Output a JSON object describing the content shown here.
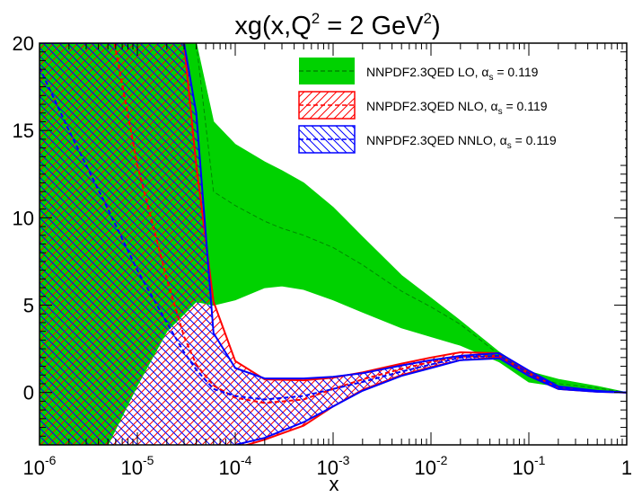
{
  "chart_data": {
    "type": "area",
    "title_parts": [
      "xg(x,Q",
      "2",
      " = 2 GeV",
      "2",
      ")"
    ],
    "xlabel": "x",
    "ylabel": "",
    "xscale": "log",
    "xlim": [
      1e-06,
      1
    ],
    "ylim": [
      -3,
      20
    ],
    "grid": false,
    "legend_position": "top-right",
    "x_major_ticks": [
      1e-06,
      1e-05,
      0.0001,
      0.001,
      0.01,
      0.1,
      1
    ],
    "x_tick_labels": [
      {
        "base": "10",
        "exp": "-6"
      },
      {
        "base": "10",
        "exp": "-5"
      },
      {
        "base": "10",
        "exp": "-4"
      },
      {
        "base": "10",
        "exp": "-3"
      },
      {
        "base": "10",
        "exp": "-2"
      },
      {
        "base": "10",
        "exp": "-1"
      },
      {
        "base": "1",
        "exp": ""
      }
    ],
    "y_major_ticks": [
      0,
      5,
      10,
      15,
      20
    ],
    "y_tick_labels": [
      "0",
      "5",
      "10",
      "15",
      "20"
    ],
    "series": [
      {
        "name": "NNPDF2.3QED LO, α",
        "alpha_sub": "s",
        "alpha_value": " = 0.119",
        "color": "#00d200",
        "fill": "solid",
        "x": [
          1e-06,
          2e-06,
          5e-06,
          1e-05,
          2e-05,
          4e-05,
          6e-05,
          0.0001,
          0.0002,
          0.0003,
          0.0005,
          0.001,
          0.002,
          0.005,
          0.01,
          0.02,
          0.05,
          0.1,
          0.2,
          0.5,
          1
        ],
        "upper": [
          20,
          20,
          20,
          20,
          20,
          20,
          15.5,
          14.2,
          13.2,
          12.7,
          12.0,
          10.6,
          8.9,
          6.7,
          5.4,
          4.1,
          2.3,
          1.2,
          0.75,
          0.35,
          0.0
        ],
        "central": [
          20,
          20,
          20,
          20,
          20,
          20,
          11.5,
          10.7,
          9.8,
          9.4,
          9.0,
          8.3,
          7.3,
          5.8,
          4.9,
          3.9,
          2.15,
          1.0,
          0.5,
          0.25,
          0.0
        ],
        "lower": [
          -3,
          -3,
          -3,
          0.4,
          3.5,
          5.2,
          5.0,
          5.3,
          6.0,
          6.1,
          5.9,
          5.3,
          4.6,
          3.7,
          3.2,
          2.7,
          1.75,
          0.6,
          0.35,
          0.1,
          0.0
        ]
      },
      {
        "name": "NNPDF2.3QED NLO, α",
        "alpha_sub": "s",
        "alpha_value": " = 0.119",
        "color": "#ff0000",
        "fill": "hatch",
        "x": [
          1e-06,
          2e-06,
          5e-06,
          1e-05,
          2e-05,
          3e-05,
          4e-05,
          6e-05,
          0.0001,
          0.0002,
          0.0005,
          0.001,
          0.002,
          0.005,
          0.01,
          0.02,
          0.05,
          0.1,
          0.2,
          0.5,
          1
        ],
        "upper": [
          20,
          20,
          20,
          20,
          20,
          20,
          13.0,
          5.2,
          1.8,
          0.75,
          0.7,
          0.85,
          1.15,
          1.65,
          2.0,
          2.3,
          2.25,
          1.2,
          0.3,
          0.08,
          0.0
        ],
        "central": [
          35,
          28,
          22,
          13.0,
          6.5,
          3.2,
          1.6,
          0.4,
          -0.3,
          -0.6,
          -0.4,
          0.2,
          0.75,
          1.35,
          1.75,
          2.05,
          2.1,
          1.05,
          0.25,
          0.06,
          0.0
        ],
        "lower": [
          -6,
          -6,
          -6,
          -6,
          -6,
          -5,
          -4.5,
          -3.5,
          -3.2,
          -2.7,
          -1.9,
          -0.8,
          0.15,
          1.0,
          1.45,
          1.85,
          2.0,
          0.95,
          0.2,
          0.04,
          0.0
        ]
      },
      {
        "name": "NNPDF2.3QED NNLO, α",
        "alpha_sub": "s",
        "alpha_value": " = 0.119",
        "color": "#0000ff",
        "fill": "hatch",
        "x": [
          1e-06,
          2e-06,
          5e-06,
          1e-05,
          2e-05,
          3e-05,
          4e-05,
          6e-05,
          0.0001,
          0.0002,
          0.0005,
          0.001,
          0.002,
          0.005,
          0.01,
          0.02,
          0.05,
          0.1,
          0.2,
          0.5,
          1
        ],
        "upper": [
          20,
          20,
          20,
          20,
          20,
          20,
          16.0,
          3.4,
          1.4,
          0.8,
          0.8,
          0.9,
          1.1,
          1.55,
          1.85,
          2.1,
          2.25,
          1.25,
          0.35,
          0.09,
          0.0
        ],
        "central": [
          18.6,
          15.0,
          10.5,
          7.0,
          4.0,
          2.3,
          1.3,
          0.2,
          -0.2,
          -0.4,
          -0.2,
          0.2,
          0.6,
          1.2,
          1.6,
          2.0,
          2.1,
          1.1,
          0.27,
          0.06,
          0.0
        ],
        "lower": [
          -6,
          -6,
          -6,
          -6,
          -6,
          -6,
          -4.6,
          -3.5,
          -3.0,
          -2.6,
          -1.7,
          -0.8,
          0.1,
          0.95,
          1.4,
          1.85,
          1.95,
          0.95,
          0.2,
          0.04,
          0.0
        ]
      }
    ]
  }
}
